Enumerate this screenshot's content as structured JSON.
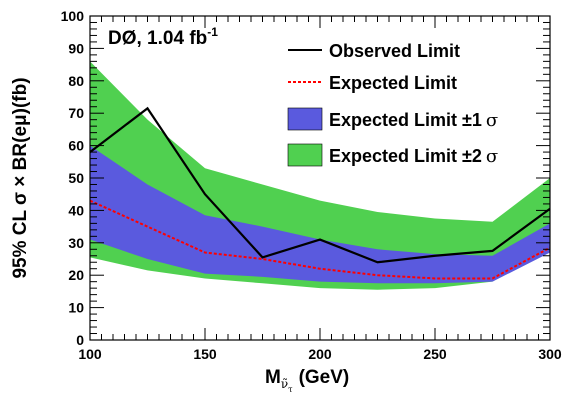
{
  "chart_data": {
    "type": "line",
    "experiment_label": "DØ, 1.04 fb",
    "experiment_label_sup": "-1",
    "xlabel": "M",
    "xlabel_sub": "ν̃",
    "xlabel_subsub": "τ",
    "xlabel_unit": "(GeV)",
    "ylabel": "95% CL σ × BR(eμ)(fb)",
    "xlim": [
      100,
      300
    ],
    "ylim": [
      0,
      100
    ],
    "x_ticks": [
      100,
      150,
      200,
      250,
      300
    ],
    "y_ticks": [
      0,
      10,
      20,
      30,
      40,
      50,
      60,
      70,
      80,
      90,
      100
    ],
    "x": [
      100,
      125,
      150,
      175,
      200,
      225,
      250,
      275,
      300
    ],
    "observed": [
      58,
      71.5,
      45,
      25.5,
      31,
      24,
      26,
      27.5,
      40.5
    ],
    "expected": [
      43,
      35,
      27,
      25,
      22,
      20,
      19,
      19,
      28.5
    ],
    "band_1sigma": {
      "low": [
        31,
        25,
        20.5,
        19.5,
        18,
        17.5,
        17.5,
        18,
        27
      ],
      "high": [
        60,
        48,
        38.5,
        35,
        31,
        28,
        26.5,
        26,
        36
      ]
    },
    "band_2sigma": {
      "low": [
        25.5,
        21.5,
        19,
        17.5,
        16,
        15.5,
        16,
        18,
        28.5
      ],
      "high": [
        86,
        68,
        53,
        48,
        43,
        39.5,
        37.5,
        36.5,
        50
      ]
    },
    "legend": [
      {
        "label": "Observed Limit",
        "style": "line",
        "color": "#000000"
      },
      {
        "label": "Expected Limit",
        "style": "dashed",
        "color": "#ff0000"
      },
      {
        "label": "Expected Limit ±1",
        "sigma": "σ",
        "style": "fill",
        "color": "#5a5ade"
      },
      {
        "label": "Expected Limit ±2",
        "sigma": "σ",
        "style": "fill",
        "color": "#50d050"
      }
    ],
    "legend_placement": "top-right",
    "grid": false,
    "colors": {
      "band_2sigma": "#50d050",
      "band_1sigma": "#5a5ade",
      "observed": "#000000",
      "expected": "#ff0000"
    }
  }
}
